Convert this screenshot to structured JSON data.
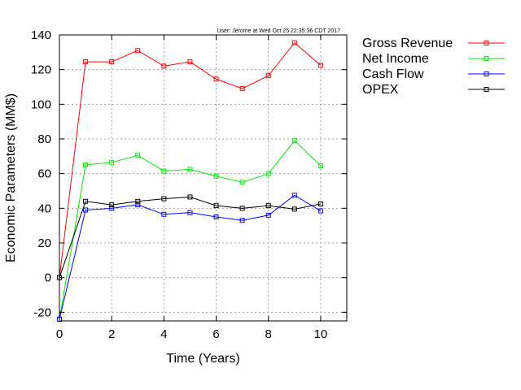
{
  "stamp": "User: Jerome at Wed Oct 25 22:35:36 CDT 2017",
  "chart_data": {
    "type": "line",
    "xlabel": "Time (Years)",
    "ylabel": "Economic Parameters (MM$)",
    "xlim": [
      0,
      11
    ],
    "ylim": [
      -25,
      140
    ],
    "xticks": [
      0,
      2,
      4,
      6,
      8,
      10
    ],
    "yticks": [
      -20,
      0,
      20,
      40,
      60,
      80,
      100,
      120,
      140
    ],
    "grid": true,
    "legend": "outside-right",
    "x": [
      0,
      1,
      2,
      3,
      4,
      5,
      6,
      7,
      8,
      9,
      10
    ],
    "series": [
      {
        "name": "Gross Revenue",
        "color": "#ff0000",
        "values": [
          0,
          124.5,
          124.5,
          131,
          122,
          124.5,
          114.5,
          109,
          116.5,
          135.5,
          122.5
        ]
      },
      {
        "name": "Net Income",
        "color": "#00ee00",
        "values": [
          -24,
          65,
          66.5,
          70.5,
          61.5,
          62.5,
          58.5,
          55,
          60,
          79,
          64.5
        ]
      },
      {
        "name": "Cash Flow",
        "color": "#0000ff",
        "values": [
          -24,
          39,
          40,
          42,
          36.5,
          37.5,
          35,
          33,
          36,
          47.5,
          38.5
        ]
      },
      {
        "name": "OPEX",
        "color": "#000000",
        "values": [
          0,
          44,
          42,
          44,
          45.5,
          46.5,
          41.5,
          40,
          41.5,
          39.5,
          42.5
        ]
      }
    ]
  }
}
